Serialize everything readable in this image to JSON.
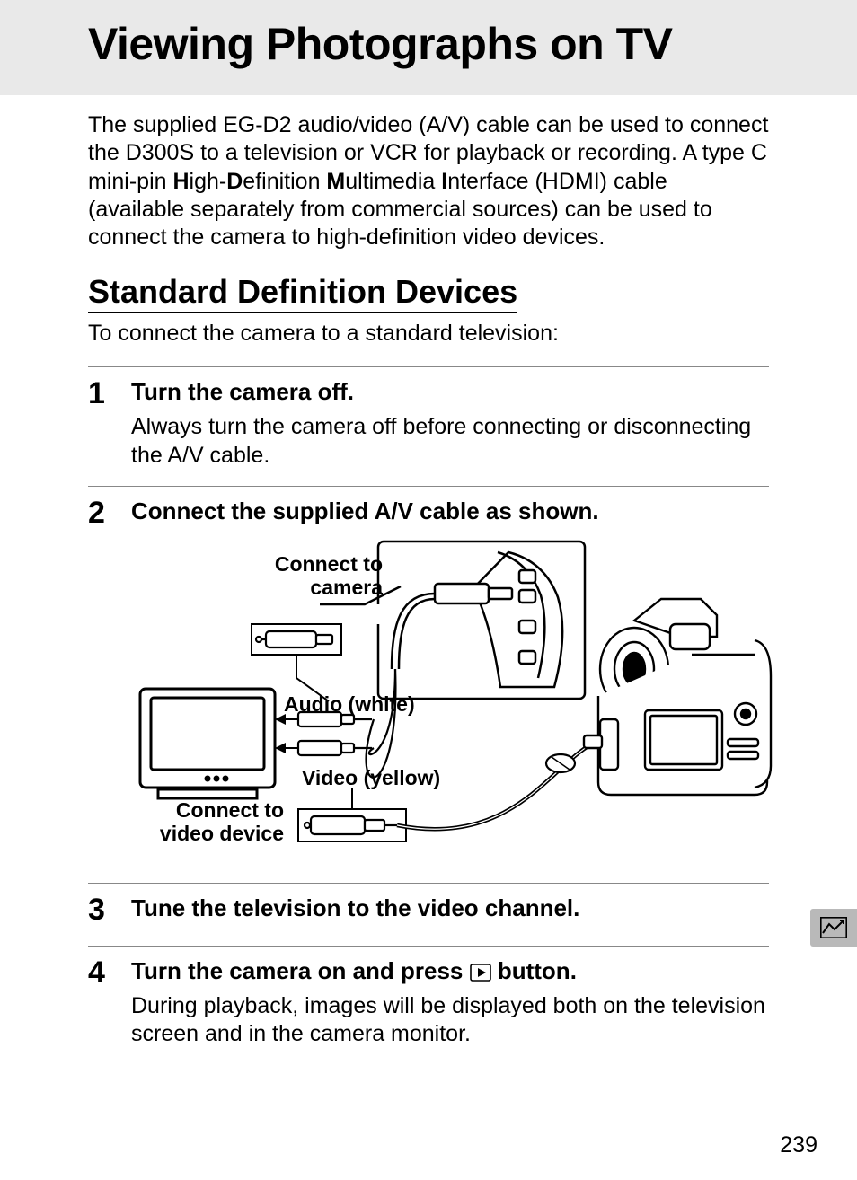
{
  "header": {
    "title": "Viewing Photographs on TV"
  },
  "intro_html": "The supplied EG-D2 audio/video (A/V) cable can be used to connect the D300S to a television or VCR for playback or recording. A type C mini-pin <b>H</b>igh-<b>D</b>efinition <b>M</b>ultimedia <b>I</b>nterface (HDMI) cable (available separately from commercial sources) can be used to connect the camera to high-definition video devices.",
  "section": {
    "heading": "Standard Definition Devices",
    "lead": "To connect the camera to a standard television:"
  },
  "steps": [
    {
      "num": "1",
      "title": "Turn the camera off.",
      "text": "Always turn the camera off before connecting or disconnecting the A/V cable.",
      "has_diagram": false
    },
    {
      "num": "2",
      "title": "Connect the supplied A/V cable as shown.",
      "text": "",
      "has_diagram": true
    },
    {
      "num": "3",
      "title": "Tune the television to the video channel.",
      "text": "",
      "has_diagram": false
    },
    {
      "num": "4",
      "title_html": "Turn the camera on and press <svg class='playbtn' width='24' height='20' viewBox='0 0 24 20'><rect x='1' y='1' width='22' height='18' rx='2' ry='2' fill='none' stroke='#000' stroke-width='1.6'/><polygon points='9,5 18,10 9,15' fill='#000'/></svg> button.",
      "text": "During playback, images will be displayed both on the television screen and in the camera monitor.",
      "has_diagram": false
    }
  ],
  "diagram": {
    "labels": {
      "connect_camera": "Connect to camera",
      "audio": "Audio (white)",
      "video": "Video (yellow)",
      "connect_video": "Connect to video device"
    }
  },
  "page_number": "239",
  "colors": {
    "header_bg": "#e9e9e9",
    "text": "#000000",
    "rule": "#888888",
    "side_tab_bg": "#b9b9b9"
  },
  "typography": {
    "title_pt": 50,
    "h2_pt": 36,
    "body_pt": 25,
    "step_num_pt": 34,
    "step_title_pt": 26,
    "diagram_label_pt": 23
  }
}
